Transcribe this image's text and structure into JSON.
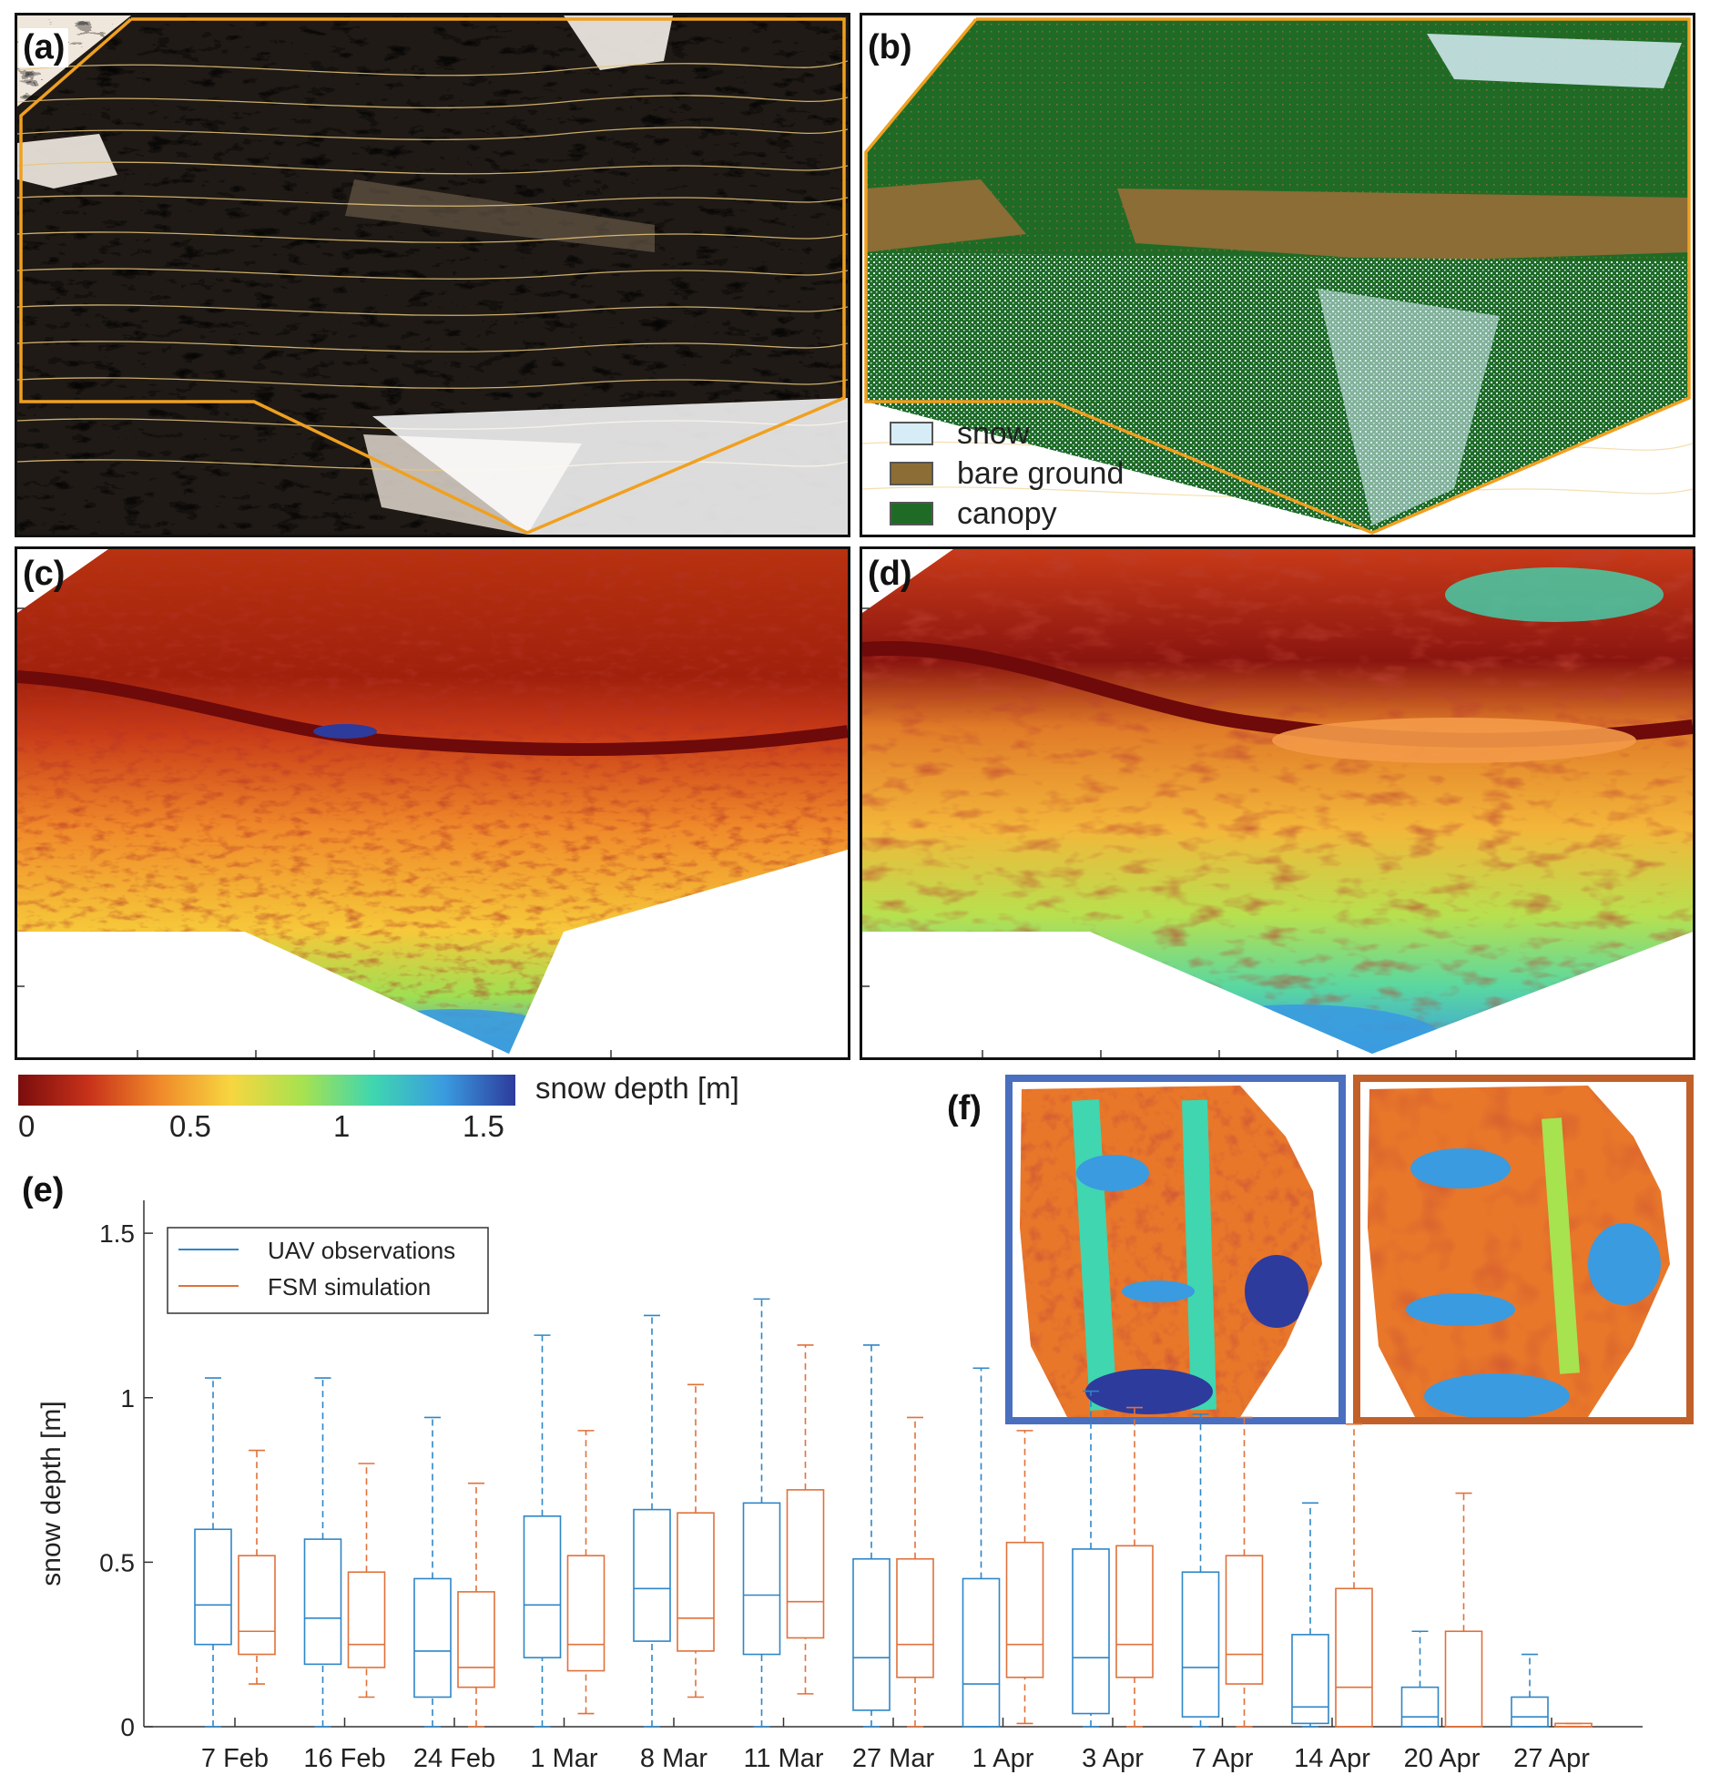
{
  "panels": {
    "a": {
      "label": "(a)"
    },
    "b": {
      "label": "(b)",
      "legend": [
        {
          "label": "snow",
          "color": "#d6ecf7"
        },
        {
          "label": "bare ground",
          "color": "#8b6d35"
        },
        {
          "label": "canopy",
          "color": "#1f6b26"
        }
      ]
    },
    "c": {
      "label": "(c)"
    },
    "d": {
      "label": "(d)"
    },
    "e": {
      "label": "(e)"
    },
    "f": {
      "label": "(f)",
      "frame_colors": [
        "#4a6fbf",
        "#c2602a"
      ]
    }
  },
  "colorbar": {
    "title": "snow depth [m]",
    "ticks": [
      "0",
      "0.5",
      "1",
      "1.5"
    ],
    "stops": [
      "#7a0d0d",
      "#c8321a",
      "#f08a2a",
      "#f7d640",
      "#a7e24f",
      "#3fd6b0",
      "#3a9be0",
      "#2d3b9c"
    ]
  },
  "colors": {
    "uav": "#2e86c8",
    "fsm": "#e0713a",
    "contour": "#e9c77a",
    "boundary": "#f0a020"
  },
  "chart_data": {
    "type": "box",
    "ylabel": "snow depth [m]",
    "ylim": [
      0,
      1.6
    ],
    "yticks": [
      "0",
      "0.5",
      "1",
      "1.5"
    ],
    "categories": [
      "7 Feb",
      "16 Feb",
      "24 Feb",
      "1 Mar",
      "8 Mar",
      "11 Mar",
      "27 Mar",
      "1 Apr",
      "3 Apr",
      "7 Apr",
      "14 Apr",
      "20 Apr",
      "27 Apr"
    ],
    "legend_position": "top-left",
    "series": [
      {
        "name": "UAV observations",
        "color": "#2e86c8",
        "boxes": [
          {
            "min": 0.0,
            "q1": 0.25,
            "median": 0.37,
            "q3": 0.6,
            "max": 1.06
          },
          {
            "min": 0.0,
            "q1": 0.19,
            "median": 0.33,
            "q3": 0.57,
            "max": 1.06
          },
          {
            "min": 0.0,
            "q1": 0.09,
            "median": 0.23,
            "q3": 0.45,
            "max": 0.94
          },
          {
            "min": 0.0,
            "q1": 0.21,
            "median": 0.37,
            "q3": 0.64,
            "max": 1.19
          },
          {
            "min": 0.0,
            "q1": 0.26,
            "median": 0.42,
            "q3": 0.66,
            "max": 1.25
          },
          {
            "min": 0.0,
            "q1": 0.22,
            "median": 0.4,
            "q3": 0.68,
            "max": 1.3
          },
          {
            "min": 0.0,
            "q1": 0.05,
            "median": 0.21,
            "q3": 0.51,
            "max": 1.16
          },
          {
            "min": 0.0,
            "q1": 0.0,
            "median": 0.13,
            "q3": 0.45,
            "max": 1.09
          },
          {
            "min": 0.0,
            "q1": 0.04,
            "median": 0.21,
            "q3": 0.54,
            "max": 1.02
          },
          {
            "min": 0.0,
            "q1": 0.03,
            "median": 0.18,
            "q3": 0.47,
            "max": 0.95
          },
          {
            "min": 0.0,
            "q1": 0.01,
            "median": 0.06,
            "q3": 0.28,
            "max": 0.68
          },
          {
            "min": 0.0,
            "q1": 0.0,
            "median": 0.03,
            "q3": 0.12,
            "max": 0.29
          },
          {
            "min": 0.0,
            "q1": 0.0,
            "median": 0.03,
            "q3": 0.09,
            "max": 0.22
          }
        ]
      },
      {
        "name": "FSM simulation",
        "color": "#e0713a",
        "boxes": [
          {
            "min": 0.13,
            "q1": 0.22,
            "median": 0.29,
            "q3": 0.52,
            "max": 0.84
          },
          {
            "min": 0.09,
            "q1": 0.18,
            "median": 0.25,
            "q3": 0.47,
            "max": 0.8
          },
          {
            "min": 0.0,
            "q1": 0.12,
            "median": 0.18,
            "q3": 0.41,
            "max": 0.74
          },
          {
            "min": 0.04,
            "q1": 0.17,
            "median": 0.25,
            "q3": 0.52,
            "max": 0.9
          },
          {
            "min": 0.09,
            "q1": 0.23,
            "median": 0.33,
            "q3": 0.65,
            "max": 1.04
          },
          {
            "min": 0.1,
            "q1": 0.27,
            "median": 0.38,
            "q3": 0.72,
            "max": 1.16
          },
          {
            "min": 0.0,
            "q1": 0.15,
            "median": 0.25,
            "q3": 0.51,
            "max": 0.94
          },
          {
            "min": 0.01,
            "q1": 0.15,
            "median": 0.25,
            "q3": 0.56,
            "max": 0.9
          },
          {
            "min": 0.0,
            "q1": 0.15,
            "median": 0.25,
            "q3": 0.55,
            "max": 0.97
          },
          {
            "min": 0.0,
            "q1": 0.13,
            "median": 0.22,
            "q3": 0.52,
            "max": 0.94
          },
          {
            "min": 0.0,
            "q1": 0.0,
            "median": 0.12,
            "q3": 0.42,
            "max": 0.92
          },
          {
            "min": 0.0,
            "q1": 0.0,
            "median": 0.0,
            "q3": 0.29,
            "max": 0.71
          },
          {
            "min": 0.0,
            "q1": 0.0,
            "median": 0.0,
            "q3": 0.01,
            "max": 0.01
          }
        ]
      }
    ]
  }
}
